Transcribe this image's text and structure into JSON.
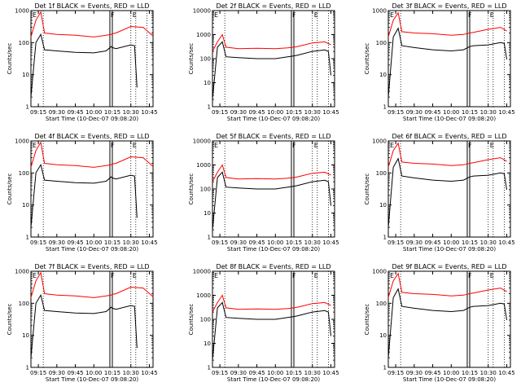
{
  "figure": {
    "xlabel": "Start Time (10-Dec-07 09:08:20)",
    "ylabel": "Counts/sec",
    "x_tick_labels": [
      "09:15",
      "09:30",
      "09:45",
      "10:00",
      "10:15",
      "10:30",
      "10:45"
    ],
    "y_tick_labels": [
      "1",
      "10",
      "100",
      "1000",
      "10000"
    ],
    "flag_labels": [
      "E",
      "F",
      "E"
    ],
    "colors": {
      "events": "#000000",
      "lld": "#ff0000"
    }
  },
  "chart_data": [
    {
      "type": "line",
      "title": "Det 1f BLACK = Events, RED = LLD",
      "ylim": [
        1,
        1000
      ],
      "series": [
        {
          "name": "Events",
          "x": [
            "09:09",
            "09:13",
            "09:17",
            "09:20",
            "09:30",
            "09:45",
            "10:00",
            "10:10",
            "10:14",
            "10:15",
            "10:18",
            "10:30",
            "10:33",
            "10:35"
          ],
          "values": [
            2,
            100,
            180,
            60,
            55,
            50,
            48,
            55,
            75,
            70,
            65,
            85,
            80,
            4
          ]
        },
        {
          "name": "LLD",
          "x": [
            "09:09",
            "09:13",
            "09:17",
            "09:20",
            "09:30",
            "09:45",
            "10:00",
            "10:10",
            "10:14",
            "10:15",
            "10:18",
            "10:30",
            "10:40",
            "10:48"
          ],
          "values": [
            150,
            500,
            900,
            200,
            180,
            170,
            150,
            170,
            180,
            190,
            200,
            320,
            300,
            160
          ]
        }
      ]
    },
    {
      "type": "line",
      "title": "Det 2f BLACK = Events, RED = LLD",
      "ylim": [
        1,
        10000
      ],
      "series": [
        {
          "name": "Events",
          "x": [
            "09:09",
            "09:13",
            "09:17",
            "09:20",
            "09:30",
            "09:45",
            "10:00",
            "10:10",
            "10:15",
            "10:18",
            "10:30",
            "10:40",
            "10:43",
            "10:45"
          ],
          "values": [
            2,
            300,
            500,
            120,
            110,
            100,
            100,
            120,
            130,
            140,
            200,
            230,
            200,
            20
          ]
        },
        {
          "name": "LLD",
          "x": [
            "09:09",
            "09:13",
            "09:17",
            "09:20",
            "09:30",
            "09:45",
            "10:00",
            "10:10",
            "10:15",
            "10:18",
            "10:30",
            "10:40",
            "10:45"
          ],
          "values": [
            200,
            500,
            1000,
            300,
            260,
            270,
            260,
            280,
            300,
            320,
            450,
            500,
            380
          ]
        }
      ]
    },
    {
      "type": "line",
      "title": "Det 3f BLACK = Events, RED = LLD",
      "ylim": [
        1,
        1000
      ],
      "series": [
        {
          "name": "Events",
          "x": [
            "09:09",
            "09:13",
            "09:17",
            "09:20",
            "09:30",
            "09:45",
            "10:00",
            "10:10",
            "10:15",
            "10:18",
            "10:30",
            "10:40",
            "10:43",
            "10:45"
          ],
          "values": [
            2,
            150,
            280,
            80,
            70,
            60,
            55,
            60,
            75,
            80,
            85,
            100,
            95,
            30
          ]
        },
        {
          "name": "LLD",
          "x": [
            "09:09",
            "09:13",
            "09:17",
            "09:20",
            "09:30",
            "09:45",
            "10:00",
            "10:10",
            "10:15",
            "10:18",
            "10:30",
            "10:40",
            "10:45"
          ],
          "values": [
            150,
            500,
            850,
            220,
            200,
            190,
            170,
            180,
            200,
            210,
            260,
            300,
            230
          ]
        }
      ]
    },
    {
      "type": "line",
      "title": "Det 4f BLACK = Events, RED = LLD",
      "ylim": [
        1,
        1000
      ],
      "series": [
        {
          "name": "Events",
          "x": [
            "09:09",
            "09:13",
            "09:17",
            "09:20",
            "09:30",
            "09:45",
            "10:00",
            "10:10",
            "10:14",
            "10:15",
            "10:18",
            "10:30",
            "10:33",
            "10:35"
          ],
          "values": [
            2,
            100,
            180,
            60,
            55,
            50,
            48,
            55,
            75,
            70,
            65,
            85,
            80,
            4
          ]
        },
        {
          "name": "LLD",
          "x": [
            "09:09",
            "09:13",
            "09:17",
            "09:20",
            "09:30",
            "09:45",
            "10:00",
            "10:10",
            "10:14",
            "10:15",
            "10:18",
            "10:30",
            "10:40",
            "10:48"
          ],
          "values": [
            150,
            500,
            900,
            200,
            180,
            170,
            150,
            170,
            180,
            190,
            200,
            320,
            300,
            160
          ]
        }
      ]
    },
    {
      "type": "line",
      "title": "Det 5f BLACK = Events, RED = LLD",
      "ylim": [
        1,
        10000
      ],
      "series": [
        {
          "name": "Events",
          "x": [
            "09:09",
            "09:13",
            "09:17",
            "09:20",
            "09:30",
            "09:45",
            "10:00",
            "10:10",
            "10:15",
            "10:18",
            "10:30",
            "10:40",
            "10:43",
            "10:45"
          ],
          "values": [
            2,
            300,
            500,
            120,
            110,
            100,
            100,
            120,
            130,
            140,
            200,
            230,
            200,
            20
          ]
        },
        {
          "name": "LLD",
          "x": [
            "09:09",
            "09:13",
            "09:17",
            "09:20",
            "09:30",
            "09:45",
            "10:00",
            "10:10",
            "10:15",
            "10:18",
            "10:30",
            "10:40",
            "10:45"
          ],
          "values": [
            200,
            500,
            1000,
            300,
            260,
            270,
            260,
            280,
            300,
            320,
            450,
            500,
            380
          ]
        }
      ]
    },
    {
      "type": "line",
      "title": "Det 6f BLACK = Events, RED = LLD",
      "ylim": [
        1,
        1000
      ],
      "series": [
        {
          "name": "Events",
          "x": [
            "09:09",
            "09:13",
            "09:17",
            "09:20",
            "09:30",
            "09:45",
            "10:00",
            "10:10",
            "10:15",
            "10:18",
            "10:30",
            "10:40",
            "10:43",
            "10:45"
          ],
          "values": [
            2,
            150,
            280,
            80,
            70,
            60,
            55,
            60,
            75,
            80,
            85,
            100,
            95,
            30
          ]
        },
        {
          "name": "LLD",
          "x": [
            "09:09",
            "09:13",
            "09:17",
            "09:20",
            "09:30",
            "09:45",
            "10:00",
            "10:10",
            "10:15",
            "10:18",
            "10:30",
            "10:40",
            "10:45"
          ],
          "values": [
            150,
            500,
            850,
            220,
            200,
            190,
            170,
            180,
            200,
            210,
            260,
            300,
            230
          ]
        }
      ]
    },
    {
      "type": "line",
      "title": "Det 7f BLACK = Events, RED = LLD",
      "ylim": [
        1,
        1000
      ],
      "series": [
        {
          "name": "Events",
          "x": [
            "09:09",
            "09:13",
            "09:17",
            "09:20",
            "09:30",
            "09:45",
            "10:00",
            "10:10",
            "10:14",
            "10:15",
            "10:18",
            "10:30",
            "10:33",
            "10:35"
          ],
          "values": [
            2,
            100,
            180,
            60,
            55,
            50,
            48,
            55,
            75,
            70,
            65,
            85,
            80,
            4
          ]
        },
        {
          "name": "LLD",
          "x": [
            "09:09",
            "09:13",
            "09:17",
            "09:20",
            "09:30",
            "09:45",
            "10:00",
            "10:10",
            "10:14",
            "10:15",
            "10:18",
            "10:30",
            "10:40",
            "10:48"
          ],
          "values": [
            150,
            500,
            900,
            200,
            180,
            170,
            150,
            170,
            180,
            190,
            200,
            320,
            300,
            160
          ]
        }
      ]
    },
    {
      "type": "line",
      "title": "Det 8f BLACK = Events, RED = LLD",
      "ylim": [
        1,
        10000
      ],
      "series": [
        {
          "name": "Events",
          "x": [
            "09:09",
            "09:13",
            "09:17",
            "09:20",
            "09:30",
            "09:45",
            "10:00",
            "10:10",
            "10:15",
            "10:18",
            "10:30",
            "10:40",
            "10:43",
            "10:45"
          ],
          "values": [
            2,
            300,
            500,
            120,
            110,
            100,
            100,
            120,
            130,
            140,
            200,
            230,
            200,
            20
          ]
        },
        {
          "name": "LLD",
          "x": [
            "09:09",
            "09:13",
            "09:17",
            "09:20",
            "09:30",
            "09:45",
            "10:00",
            "10:10",
            "10:15",
            "10:18",
            "10:30",
            "10:40",
            "10:45"
          ],
          "values": [
            200,
            500,
            1000,
            300,
            260,
            270,
            260,
            280,
            300,
            320,
            450,
            500,
            380
          ]
        }
      ]
    },
    {
      "type": "line",
      "title": "Det 9f BLACK = Events, RED = LLD",
      "ylim": [
        1,
        1000
      ],
      "series": [
        {
          "name": "Events",
          "x": [
            "09:09",
            "09:13",
            "09:17",
            "09:20",
            "09:30",
            "09:45",
            "10:00",
            "10:10",
            "10:15",
            "10:18",
            "10:30",
            "10:40",
            "10:43",
            "10:45"
          ],
          "values": [
            2,
            150,
            280,
            80,
            70,
            60,
            55,
            60,
            75,
            80,
            85,
            100,
            95,
            30
          ]
        },
        {
          "name": "LLD",
          "x": [
            "09:09",
            "09:13",
            "09:17",
            "09:20",
            "09:30",
            "09:45",
            "10:00",
            "10:10",
            "10:15",
            "10:18",
            "10:30",
            "10:40",
            "10:45"
          ],
          "values": [
            150,
            500,
            850,
            220,
            200,
            190,
            170,
            180,
            200,
            210,
            260,
            300,
            230
          ]
        }
      ]
    }
  ]
}
